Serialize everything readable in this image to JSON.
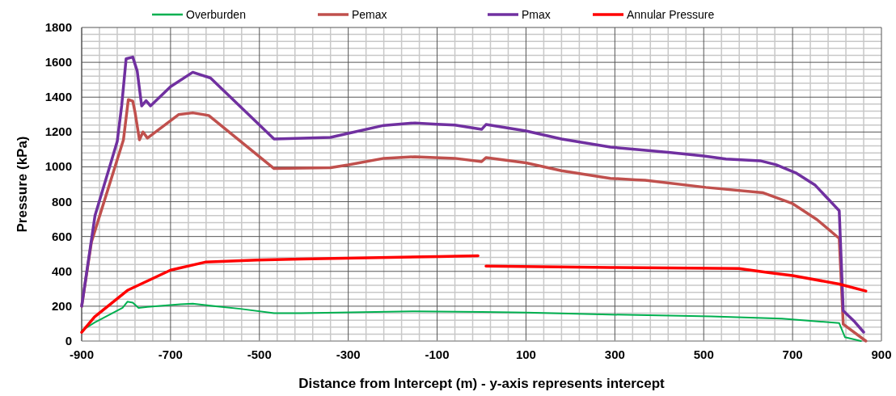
{
  "chart_data": {
    "type": "line",
    "xlabel": "Distance from Intercept (m) - y-axis represents intercept",
    "ylabel": "Pressure (kPa)",
    "xlim": [
      -900,
      900
    ],
    "ylim": [
      0,
      1800
    ],
    "xticks": [
      -900,
      -700,
      -500,
      -300,
      -100,
      100,
      300,
      500,
      700,
      900
    ],
    "yticks": [
      0,
      200,
      400,
      600,
      800,
      1000,
      1200,
      1400,
      1600,
      1800
    ],
    "grid": true,
    "legend": "top",
    "line_style": "solid",
    "marker": "none",
    "series": [
      {
        "name": "Overburden",
        "color": "#00b050",
        "x": [
          -900,
          -871,
          -808,
          -797,
          -785,
          -772,
          -752,
          -678,
          -650,
          -622,
          -543,
          -467,
          -406,
          -150,
          0,
          100,
          290,
          517,
          676,
          805,
          818,
          854
        ],
        "values": [
          60,
          106,
          191,
          226,
          220,
          190,
          196,
          211,
          215,
          206,
          185,
          160,
          160,
          171,
          167,
          164,
          152,
          142,
          129,
          103,
          22,
          0
        ]
      },
      {
        "name": "Pemax",
        "color": "#c0504d",
        "x": [
          -900,
          -878,
          -806,
          -795,
          -785,
          -780,
          -770,
          -762,
          -752,
          -682,
          -650,
          -614,
          -467,
          -340,
          -300,
          -220,
          -150,
          -60,
          0,
          10,
          100,
          180,
          290,
          346,
          368,
          505,
          634,
          700,
          755,
          805,
          814,
          865
        ],
        "values": [
          200,
          568,
          1155,
          1386,
          1377,
          1315,
          1155,
          1200,
          1165,
          1300,
          1310,
          1295,
          990,
          995,
          1011,
          1049,
          1058,
          1049,
          1030,
          1053,
          1023,
          978,
          934,
          926,
          923,
          882,
          851,
          789,
          697,
          589,
          97,
          0
        ]
      },
      {
        "name": "Pmax",
        "color": "#7030a0",
        "x": [
          -900,
          -870,
          -820,
          -810,
          -800,
          -785,
          -775,
          -765,
          -755,
          -745,
          -700,
          -650,
          -610,
          -467,
          -340,
          -300,
          -220,
          -150,
          -100,
          -60,
          0,
          10,
          100,
          180,
          290,
          350,
          425,
          500,
          550,
          627,
          663,
          707,
          750,
          805,
          814,
          840,
          860
        ],
        "values": [
          200,
          720,
          1146,
          1350,
          1620,
          1630,
          1550,
          1350,
          1380,
          1350,
          1460,
          1543,
          1510,
          1160,
          1169,
          1192,
          1238,
          1252,
          1245,
          1240,
          1215,
          1243,
          1206,
          1160,
          1113,
          1100,
          1082,
          1062,
          1045,
          1035,
          1012,
          966,
          897,
          748,
          174,
          110,
          51
        ]
      },
      {
        "name": "Annular Pressure",
        "color": "#ff0000",
        "x": [
          -900,
          -871,
          -797,
          -700,
          -622,
          -504,
          -406,
          -100,
          -8,
          0,
          10,
          290,
          579,
          652,
          700,
          805,
          865
        ],
        "values": [
          50,
          139,
          291,
          407,
          453,
          465,
          471,
          485,
          490,
          null,
          430,
          422,
          416,
          391,
          376,
          327,
          287
        ]
      }
    ]
  }
}
